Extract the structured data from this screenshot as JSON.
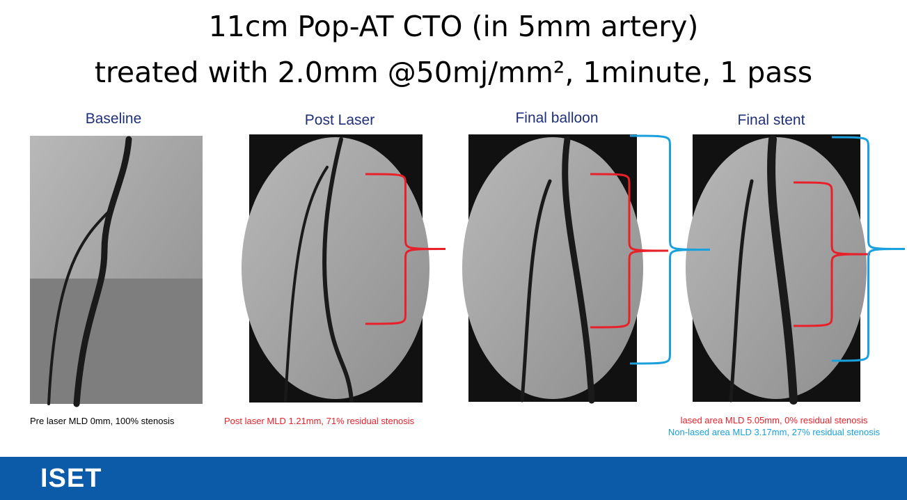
{
  "header": {
    "title_line1": "11cm Pop-AT CTO (in 5mm artery)",
    "title_line2": "treated with 2.0mm @50mj/mm², 1minute, 1 pass"
  },
  "panels": [
    {
      "label": "Baseline",
      "caption": "Pre laser MLD 0mm, 100% stenosis"
    },
    {
      "label": "Post Laser",
      "caption": "Post laser MLD 1.21mm, 71% residual stenosis"
    },
    {
      "label": "Final balloon"
    },
    {
      "label": "Final stent",
      "caption": "lased area MLD 5.05mm, 0% residual stenosis",
      "caption2": "Non-lased area MLD 3.17mm, 27% residual stenosis"
    }
  ],
  "footer": {
    "logo": "ISET"
  }
}
